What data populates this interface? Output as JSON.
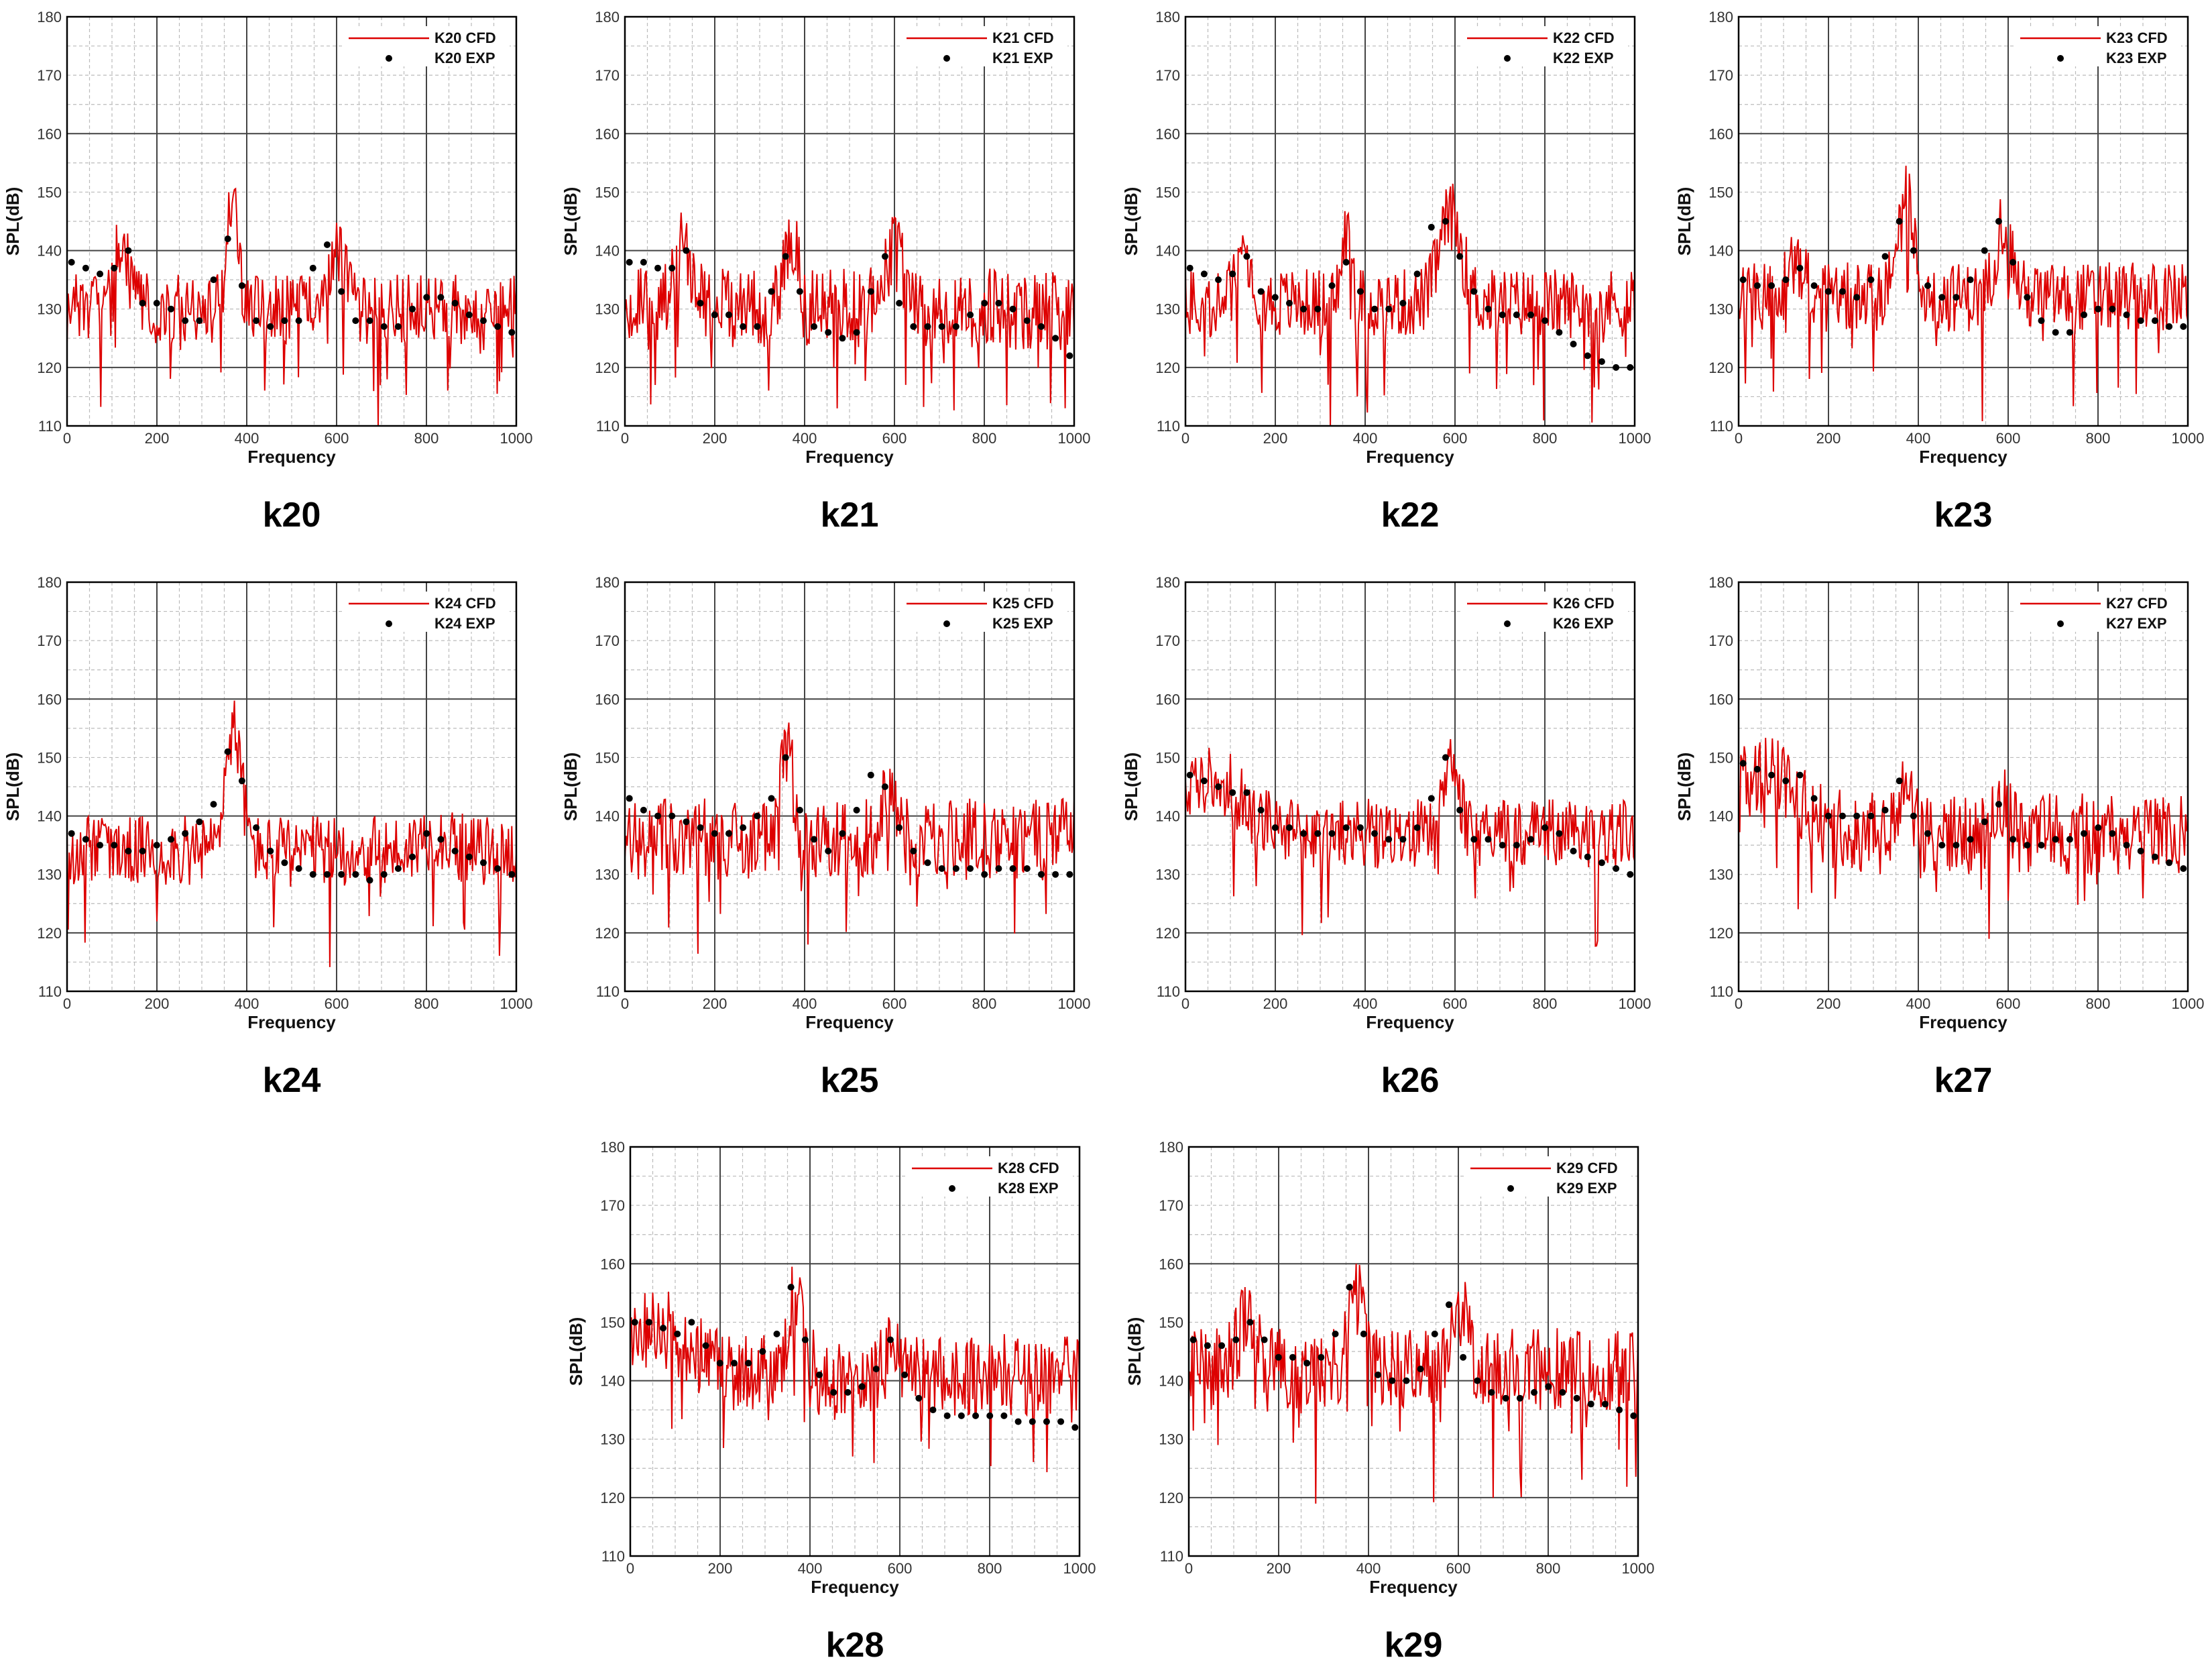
{
  "colors": {
    "cfd": "#dd0000",
    "exp": "#000000",
    "grid_major": "#444444",
    "grid_minor": "#bbbbbb"
  },
  "chart_data": [
    {
      "type": "line",
      "caption": "k20",
      "xlabel": "Frequency",
      "ylabel": "SPL(dB)",
      "xlim": [
        0,
        1000
      ],
      "ylim": [
        110,
        180
      ],
      "xticks": [
        "0",
        "200",
        "400",
        "600",
        "800",
        "1000"
      ],
      "yticks": [
        "110",
        "120",
        "130",
        "140",
        "150",
        "160",
        "170",
        "180"
      ],
      "grid": true,
      "legend_position": "top-right",
      "series": [
        {
          "name": "K20  CFD",
          "kind": "line",
          "seed": 20,
          "base": 130,
          "noise": 6,
          "peaks": [
            [
              120,
              140,
              20
            ],
            [
              370,
              150,
              12
            ],
            [
              600,
              141,
              20
            ]
          ]
        },
        {
          "name": "K20  EXP",
          "kind": "markers",
          "values": [
            138,
            137,
            136,
            137,
            140,
            131,
            131,
            130,
            128,
            128,
            135,
            142,
            134,
            128,
            127,
            128,
            128,
            137,
            141,
            133,
            128,
            128,
            127,
            127,
            130,
            132,
            132,
            131,
            129,
            128,
            127,
            126
          ]
        }
      ]
    },
    {
      "type": "line",
      "caption": "k21",
      "xlabel": "Frequency",
      "ylabel": "SPL(dB)",
      "xlim": [
        0,
        1000
      ],
      "ylim": [
        110,
        180
      ],
      "xticks": [
        "0",
        "200",
        "400",
        "600",
        "800",
        "1000"
      ],
      "yticks": [
        "110",
        "120",
        "130",
        "140",
        "150",
        "160",
        "170",
        "180"
      ],
      "grid": true,
      "legend_position": "top-right",
      "series": [
        {
          "name": "K21  CFD",
          "kind": "line",
          "seed": 21,
          "base": 130,
          "noise": 7,
          "peaks": [
            [
              130,
              140,
              20
            ],
            [
              370,
              143,
              14
            ],
            [
              600,
              140,
              20
            ]
          ]
        },
        {
          "name": "K21  EXP",
          "kind": "markers",
          "values": [
            138,
            138,
            137,
            137,
            140,
            131,
            129,
            129,
            127,
            127,
            133,
            139,
            133,
            127,
            126,
            125,
            126,
            133,
            139,
            131,
            127,
            127,
            127,
            127,
            129,
            131,
            131,
            130,
            128,
            127,
            125,
            122
          ]
        }
      ]
    },
    {
      "type": "line",
      "caption": "k22",
      "xlabel": "Frequency",
      "ylabel": "SPL(dB)",
      "xlim": [
        0,
        1000
      ],
      "ylim": [
        110,
        180
      ],
      "xticks": [
        "0",
        "200",
        "400",
        "600",
        "800",
        "1000"
      ],
      "yticks": [
        "110",
        "120",
        "130",
        "140",
        "150",
        "160",
        "170",
        "180"
      ],
      "grid": true,
      "legend_position": "top-right",
      "series": [
        {
          "name": "K22  CFD",
          "kind": "line",
          "seed": 22,
          "base": 131,
          "noise": 6,
          "peaks": [
            [
              130,
              140,
              18
            ],
            [
              360,
              143,
              12
            ],
            [
              590,
              146,
              25
            ]
          ]
        },
        {
          "name": "K22  EXP",
          "kind": "markers",
          "values": [
            137,
            136,
            135,
            136,
            139,
            133,
            132,
            131,
            130,
            130,
            134,
            138,
            133,
            130,
            130,
            131,
            136,
            144,
            145,
            139,
            133,
            130,
            129,
            129,
            129,
            128,
            126,
            124,
            122,
            121,
            120,
            120
          ]
        }
      ]
    },
    {
      "type": "line",
      "caption": "k23",
      "xlabel": "Frequency",
      "ylabel": "SPL(dB)",
      "xlim": [
        0,
        1000
      ],
      "ylim": [
        110,
        180
      ],
      "xticks": [
        "0",
        "200",
        "400",
        "600",
        "800",
        "1000"
      ],
      "yticks": [
        "110",
        "120",
        "130",
        "140",
        "150",
        "160",
        "170",
        "180"
      ],
      "grid": true,
      "legend_position": "top-right",
      "series": [
        {
          "name": "K23  CFD",
          "kind": "line",
          "seed": 23,
          "base": 132,
          "noise": 6,
          "peaks": [
            [
              130,
              138,
              20
            ],
            [
              370,
              150,
              18
            ],
            [
              590,
              145,
              18
            ]
          ]
        },
        {
          "name": "K23  EXP",
          "kind": "markers",
          "values": [
            135,
            134,
            134,
            135,
            137,
            134,
            133,
            133,
            132,
            135,
            139,
            145,
            140,
            134,
            132,
            132,
            135,
            140,
            145,
            138,
            132,
            128,
            126,
            126,
            129,
            130,
            130,
            129,
            128,
            128,
            127,
            127
          ]
        }
      ]
    },
    {
      "type": "line",
      "caption": "k24",
      "xlabel": "Frequency",
      "ylabel": "SPL(dB)",
      "xlim": [
        0,
        1000
      ],
      "ylim": [
        110,
        180
      ],
      "xticks": [
        "0",
        "200",
        "400",
        "600",
        "800",
        "1000"
      ],
      "yticks": [
        "110",
        "120",
        "130",
        "140",
        "150",
        "160",
        "170",
        "180"
      ],
      "grid": true,
      "legend_position": "top-right",
      "series": [
        {
          "name": "K24  CFD",
          "kind": "line",
          "seed": 24,
          "base": 134,
          "noise": 6,
          "peaks": [
            [
              370,
              155,
              18
            ],
            [
              820,
              137,
              30
            ]
          ]
        },
        {
          "name": "K24  EXP",
          "kind": "markers",
          "values": [
            137,
            136,
            135,
            135,
            134,
            134,
            135,
            136,
            137,
            139,
            142,
            151,
            146,
            138,
            134,
            132,
            131,
            130,
            130,
            130,
            130,
            129,
            130,
            131,
            133,
            137,
            136,
            134,
            133,
            132,
            131,
            130
          ]
        }
      ]
    },
    {
      "type": "line",
      "caption": "k25",
      "xlabel": "Frequency",
      "ylabel": "SPL(dB)",
      "xlim": [
        0,
        1000
      ],
      "ylim": [
        110,
        180
      ],
      "xticks": [
        "0",
        "200",
        "400",
        "600",
        "800",
        "1000"
      ],
      "yticks": [
        "110",
        "120",
        "130",
        "140",
        "150",
        "160",
        "170",
        "180"
      ],
      "grid": true,
      "legend_position": "top-right",
      "series": [
        {
          "name": "K25  CFD",
          "kind": "line",
          "seed": 25,
          "base": 136,
          "noise": 7,
          "peaks": [
            [
              360,
              150,
              16
            ],
            [
              590,
              146,
              16
            ]
          ]
        },
        {
          "name": "K25  EXP",
          "kind": "markers",
          "values": [
            143,
            141,
            140,
            140,
            139,
            138,
            137,
            137,
            138,
            140,
            143,
            150,
            141,
            136,
            134,
            137,
            141,
            147,
            145,
            138,
            134,
            132,
            131,
            131,
            131,
            130,
            131,
            131,
            131,
            130,
            130,
            130
          ]
        }
      ]
    },
    {
      "type": "line",
      "caption": "k26",
      "xlabel": "Frequency",
      "ylabel": "SPL(dB)",
      "xlim": [
        0,
        1000
      ],
      "ylim": [
        110,
        180
      ],
      "xticks": [
        "0",
        "200",
        "400",
        "600",
        "800",
        "1000"
      ],
      "yticks": [
        "110",
        "120",
        "130",
        "140",
        "150",
        "160",
        "170",
        "180"
      ],
      "grid": true,
      "legend_position": "top-right",
      "series": [
        {
          "name": "K26  CFD",
          "kind": "line",
          "seed": 26,
          "base": 137,
          "noise": 6,
          "peaks": [
            [
              60,
              146,
              70
            ],
            [
              590,
              149,
              20
            ]
          ]
        },
        {
          "name": "K26  EXP",
          "kind": "markers",
          "values": [
            147,
            146,
            145,
            144,
            144,
            141,
            138,
            138,
            137,
            137,
            137,
            138,
            138,
            137,
            136,
            136,
            138,
            143,
            150,
            141,
            136,
            136,
            135,
            135,
            136,
            138,
            137,
            134,
            133,
            132,
            131,
            130
          ]
        }
      ]
    },
    {
      "type": "line",
      "caption": "k27",
      "xlabel": "Frequency",
      "ylabel": "SPL(dB)",
      "xlim": [
        0,
        1000
      ],
      "ylim": [
        110,
        180
      ],
      "xticks": [
        "0",
        "200",
        "400",
        "600",
        "800",
        "1000"
      ],
      "yticks": [
        "110",
        "120",
        "130",
        "140",
        "150",
        "160",
        "170",
        "180"
      ],
      "grid": true,
      "legend_position": "top-right",
      "series": [
        {
          "name": "K27  CFD",
          "kind": "line",
          "seed": 27,
          "base": 137,
          "noise": 7,
          "peaks": [
            [
              60,
              147,
              70
            ],
            [
              370,
              147,
              16
            ],
            [
              590,
              141,
              16
            ]
          ]
        },
        {
          "name": "K27  EXP",
          "kind": "markers",
          "values": [
            149,
            148,
            147,
            146,
            147,
            143,
            140,
            140,
            140,
            140,
            141,
            146,
            140,
            137,
            135,
            135,
            136,
            139,
            142,
            136,
            135,
            135,
            136,
            136,
            137,
            138,
            137,
            135,
            134,
            133,
            132,
            131
          ]
        }
      ]
    },
    {
      "type": "line",
      "caption": "k28",
      "xlabel": "Frequency",
      "ylabel": "SPL(dB)",
      "xlim": [
        0,
        1000
      ],
      "ylim": [
        110,
        180
      ],
      "xticks": [
        "0",
        "200",
        "400",
        "600",
        "800",
        "1000"
      ],
      "yticks": [
        "110",
        "120",
        "130",
        "140",
        "150",
        "160",
        "170",
        "180"
      ],
      "grid": true,
      "legend_position": "top-right",
      "series": [
        {
          "name": "K28  CFD",
          "kind": "line",
          "seed": 28,
          "base": 141,
          "noise": 7,
          "peaks": [
            [
              60,
              149,
              70
            ],
            [
              370,
              156,
              16
            ],
            [
              590,
              147,
              16
            ]
          ]
        },
        {
          "name": "K28  EXP",
          "kind": "markers",
          "values": [
            150,
            150,
            149,
            148,
            150,
            146,
            143,
            143,
            143,
            145,
            148,
            156,
            147,
            141,
            138,
            138,
            139,
            142,
            147,
            141,
            137,
            135,
            134,
            134,
            134,
            134,
            134,
            133,
            133,
            133,
            133,
            132
          ]
        }
      ]
    },
    {
      "type": "line",
      "caption": "k29",
      "xlabel": "Frequency",
      "ylabel": "SPL(dB)",
      "xlim": [
        0,
        1000
      ],
      "ylim": [
        110,
        180
      ],
      "xticks": [
        "0",
        "200",
        "400",
        "600",
        "800",
        "1000"
      ],
      "yticks": [
        "110",
        "120",
        "130",
        "140",
        "150",
        "160",
        "170",
        "180"
      ],
      "grid": true,
      "legend_position": "top-right",
      "series": [
        {
          "name": "K29  CFD",
          "kind": "line",
          "seed": 29,
          "base": 142,
          "noise": 7,
          "peaks": [
            [
              130,
              150,
              20
            ],
            [
              370,
              158,
              16
            ],
            [
              600,
              153,
              20
            ]
          ]
        },
        {
          "name": "K29  EXP",
          "kind": "markers",
          "values": [
            147,
            146,
            146,
            147,
            150,
            147,
            144,
            144,
            143,
            144,
            148,
            156,
            148,
            141,
            140,
            140,
            142,
            148,
            153,
            144,
            140,
            138,
            137,
            137,
            138,
            139,
            138,
            137,
            136,
            136,
            135,
            134
          ]
        }
      ]
    }
  ]
}
